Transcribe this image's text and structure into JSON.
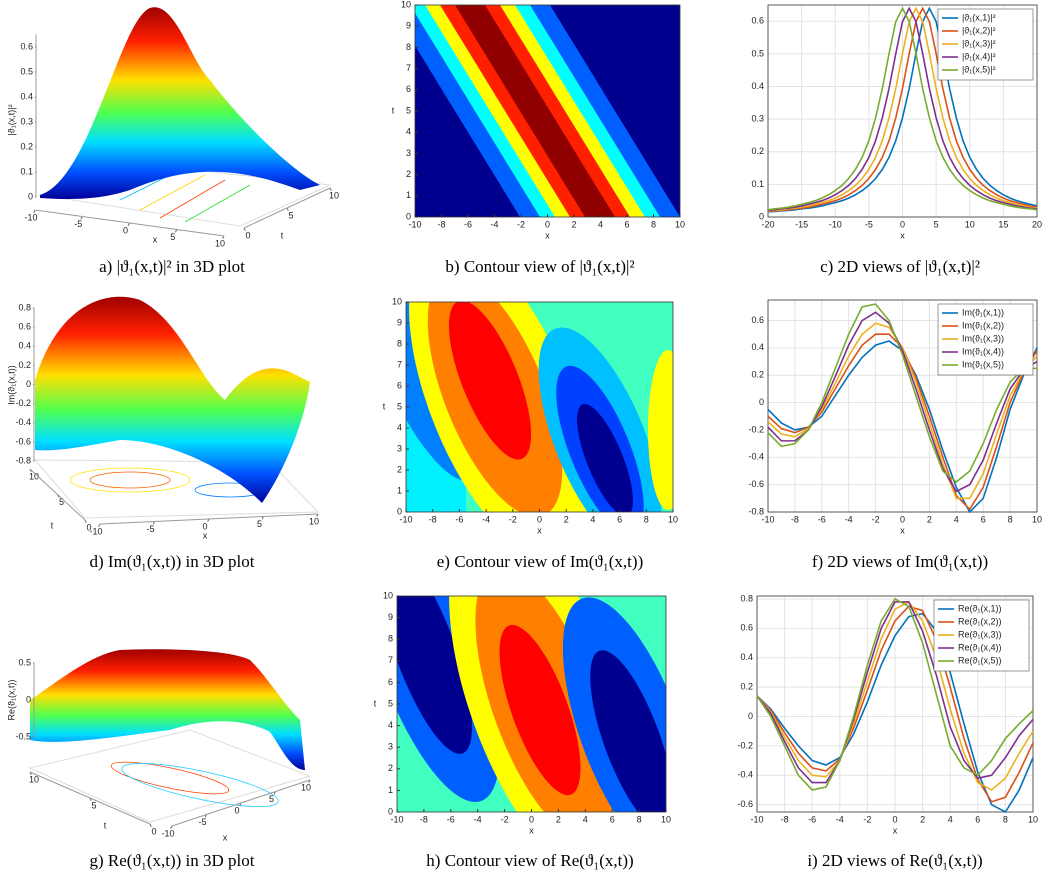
{
  "chart_data": [
    {
      "type": "surface3d",
      "caption": "a) |ϑ₁(x,t)|² in 3D plot",
      "xlabel": "x",
      "ylabel": "t",
      "zlabel": "|ϑ₁(x,t)|²",
      "xlim": [
        -10,
        10
      ],
      "xticks": [
        -10,
        -5,
        0,
        5,
        10
      ],
      "ylim": [
        0,
        10
      ],
      "yticks": [
        0,
        5,
        10
      ],
      "zlim": [
        0,
        0.65
      ],
      "zticks": [
        0,
        0.1,
        0.2,
        0.3,
        0.4,
        0.5,
        0.6
      ]
    },
    {
      "type": "contour",
      "caption": "b) Contour view of |ϑ₁(x,t)|²",
      "xlabel": "x",
      "ylabel": "t",
      "xlim": [
        -10,
        10
      ],
      "xticks": [
        -10,
        -8,
        -6,
        -4,
        -2,
        0,
        2,
        4,
        6,
        8,
        10
      ],
      "ylim": [
        0,
        10
      ],
      "yticks": [
        0,
        1,
        2,
        3,
        4,
        5,
        6,
        7,
        8,
        9,
        10
      ]
    },
    {
      "type": "line",
      "caption": "c) 2D views of |ϑ₁(x,t)|²",
      "xlabel": "x",
      "grid": true,
      "legend": "upper right",
      "xlim": [
        -20,
        20
      ],
      "xticks": [
        -20,
        -15,
        -10,
        -5,
        0,
        5,
        10,
        15,
        20
      ],
      "ylim": [
        0,
        0.65
      ],
      "yticks": [
        0,
        0.1,
        0.2,
        0.3,
        0.4,
        0.5,
        0.6
      ],
      "x": [
        -20,
        -19,
        -18,
        -17,
        -16,
        -15,
        -14,
        -13,
        -12,
        -11,
        -10,
        -9,
        -8,
        -7,
        -6,
        -5,
        -4,
        -3,
        -2,
        -1,
        0,
        1,
        2,
        3,
        4,
        5,
        6,
        7,
        8,
        9,
        10,
        11,
        12,
        13,
        14,
        15,
        16,
        17,
        18,
        19,
        20
      ],
      "series": [
        {
          "name": "|ϑ₁(x,1)|²",
          "color": "#0072bd",
          "values": [
            0.016,
            0.017,
            0.019,
            0.02,
            0.022,
            0.025,
            0.027,
            0.03,
            0.034,
            0.039,
            0.044,
            0.05,
            0.058,
            0.068,
            0.081,
            0.097,
            0.118,
            0.146,
            0.183,
            0.234,
            0.304,
            0.394,
            0.501,
            0.599,
            0.64,
            0.599,
            0.501,
            0.394,
            0.304,
            0.234,
            0.183,
            0.146,
            0.118,
            0.097,
            0.081,
            0.068,
            0.058,
            0.05,
            0.044,
            0.039,
            0.034
          ]
        },
        {
          "name": "|ϑ₁(x,2)|²",
          "color": "#d95319",
          "values": [
            0.017,
            0.019,
            0.02,
            0.022,
            0.025,
            0.027,
            0.03,
            0.034,
            0.039,
            0.044,
            0.05,
            0.058,
            0.068,
            0.081,
            0.097,
            0.118,
            0.146,
            0.183,
            0.234,
            0.304,
            0.394,
            0.501,
            0.599,
            0.64,
            0.599,
            0.501,
            0.394,
            0.304,
            0.234,
            0.183,
            0.146,
            0.118,
            0.097,
            0.081,
            0.068,
            0.058,
            0.05,
            0.044,
            0.039,
            0.034,
            0.03
          ]
        },
        {
          "name": "|ϑ₁(x,3)|²",
          "color": "#edb120",
          "values": [
            0.019,
            0.02,
            0.022,
            0.025,
            0.027,
            0.03,
            0.034,
            0.039,
            0.044,
            0.05,
            0.058,
            0.068,
            0.081,
            0.097,
            0.118,
            0.146,
            0.183,
            0.234,
            0.304,
            0.394,
            0.501,
            0.599,
            0.64,
            0.599,
            0.501,
            0.394,
            0.304,
            0.234,
            0.183,
            0.146,
            0.118,
            0.097,
            0.081,
            0.068,
            0.058,
            0.05,
            0.044,
            0.039,
            0.034,
            0.03,
            0.027
          ]
        },
        {
          "name": "|ϑ₁(x,4)|²",
          "color": "#7e2f8e",
          "values": [
            0.02,
            0.022,
            0.025,
            0.027,
            0.03,
            0.034,
            0.039,
            0.044,
            0.05,
            0.058,
            0.068,
            0.081,
            0.097,
            0.118,
            0.146,
            0.183,
            0.234,
            0.304,
            0.394,
            0.501,
            0.599,
            0.64,
            0.599,
            0.501,
            0.394,
            0.304,
            0.234,
            0.183,
            0.146,
            0.118,
            0.097,
            0.081,
            0.068,
            0.058,
            0.05,
            0.044,
            0.039,
            0.034,
            0.03,
            0.027,
            0.025
          ]
        },
        {
          "name": "|ϑ₁(x,5)|²",
          "color": "#77ac30",
          "values": [
            0.022,
            0.025,
            0.027,
            0.03,
            0.034,
            0.039,
            0.044,
            0.05,
            0.058,
            0.068,
            0.081,
            0.097,
            0.118,
            0.146,
            0.183,
            0.234,
            0.304,
            0.394,
            0.501,
            0.599,
            0.64,
            0.599,
            0.501,
            0.394,
            0.304,
            0.234,
            0.183,
            0.146,
            0.118,
            0.097,
            0.081,
            0.068,
            0.058,
            0.05,
            0.044,
            0.039,
            0.034,
            0.03,
            0.027,
            0.025,
            0.022
          ]
        }
      ]
    },
    {
      "type": "surface3d",
      "caption": "d) Im(ϑ₁(x,t)) in 3D plot",
      "xlabel": "x",
      "ylabel": "t",
      "zlabel": "Im(ϑ₁(x,t))",
      "xlim": [
        -10,
        10
      ],
      "xticks": [
        -10,
        -5,
        0,
        5,
        10
      ],
      "ylim": [
        0,
        10
      ],
      "yticks": [
        0,
        5,
        10
      ],
      "zlim": [
        -0.8,
        0.8
      ],
      "zticks": [
        -0.8,
        -0.6,
        -0.4,
        -0.2,
        0,
        0.2,
        0.4,
        0.6,
        0.8
      ]
    },
    {
      "type": "contour",
      "caption": "e) Contour view of Im(ϑ₁(x,t))",
      "xlabel": "x",
      "ylabel": "t",
      "xlim": [
        -10,
        10
      ],
      "xticks": [
        -10,
        -8,
        -6,
        -4,
        -2,
        0,
        2,
        4,
        6,
        8,
        10
      ],
      "ylim": [
        0,
        10
      ],
      "yticks": [
        0,
        1,
        2,
        3,
        4,
        5,
        6,
        7,
        8,
        9,
        10
      ]
    },
    {
      "type": "line",
      "caption": "f) 2D views of Im(ϑ₁(x,t))",
      "xlabel": "x",
      "grid": true,
      "legend": "upper right",
      "xlim": [
        -10,
        10
      ],
      "xticks": [
        -10,
        -8,
        -6,
        -4,
        -2,
        0,
        2,
        4,
        6,
        8,
        10
      ],
      "ylim": [
        -0.8,
        0.75
      ],
      "yticks": [
        -0.8,
        -0.6,
        -0.4,
        -0.2,
        0,
        0.2,
        0.4,
        0.6
      ],
      "x": [
        -10,
        -9,
        -8,
        -7,
        -6,
        -5,
        -4,
        -3,
        -2,
        -1,
        0,
        1,
        2,
        3,
        4,
        5,
        6,
        7,
        8,
        9,
        10
      ],
      "series": [
        {
          "name": "Im(ϑ₁(x,1))",
          "color": "#0072bd",
          "values": [
            -0.05,
            -0.15,
            -0.2,
            -0.18,
            -0.1,
            0.05,
            0.2,
            0.33,
            0.42,
            0.45,
            0.38,
            0.2,
            -0.05,
            -0.35,
            -0.62,
            -0.8,
            -0.7,
            -0.4,
            -0.05,
            0.2,
            0.4
          ]
        },
        {
          "name": "Im(ϑ₁(x,2))",
          "color": "#d95319",
          "values": [
            -0.1,
            -0.19,
            -0.22,
            -0.18,
            -0.07,
            0.1,
            0.27,
            0.42,
            0.5,
            0.5,
            0.4,
            0.18,
            -0.1,
            -0.4,
            -0.68,
            -0.78,
            -0.62,
            -0.32,
            0.0,
            0.22,
            0.38
          ]
        },
        {
          "name": "Im(ϑ₁(x,3))",
          "color": "#edb120",
          "values": [
            -0.14,
            -0.23,
            -0.25,
            -0.19,
            -0.05,
            0.14,
            0.34,
            0.5,
            0.58,
            0.55,
            0.4,
            0.15,
            -0.15,
            -0.45,
            -0.7,
            -0.7,
            -0.52,
            -0.23,
            0.05,
            0.23,
            0.34
          ]
        },
        {
          "name": "Im(ϑ₁(x,4))",
          "color": "#7e2f8e",
          "values": [
            -0.18,
            -0.28,
            -0.28,
            -0.2,
            -0.03,
            0.19,
            0.42,
            0.6,
            0.66,
            0.58,
            0.38,
            0.1,
            -0.2,
            -0.48,
            -0.65,
            -0.6,
            -0.42,
            -0.15,
            0.1,
            0.24,
            0.3
          ]
        },
        {
          "name": "Im(ϑ₁(x,5))",
          "color": "#77ac30",
          "values": [
            -0.22,
            -0.32,
            -0.3,
            -0.2,
            0.0,
            0.25,
            0.5,
            0.7,
            0.72,
            0.6,
            0.35,
            0.05,
            -0.25,
            -0.5,
            -0.58,
            -0.5,
            -0.3,
            -0.05,
            0.15,
            0.25,
            0.25
          ]
        }
      ]
    },
    {
      "type": "surface3d",
      "caption": "g) Re(ϑ₁(x,t)) in 3D plot",
      "xlabel": "x",
      "ylabel": "t",
      "zlabel": "Re(ϑ₁(x,t))",
      "xlim": [
        -10,
        10
      ],
      "xticks": [
        -10,
        -5,
        0,
        5,
        10
      ],
      "ylim": [
        0,
        10
      ],
      "yticks": [
        0,
        5,
        10
      ],
      "zlim": [
        -0.5,
        0.5
      ],
      "zticks": [
        -0.5,
        0,
        0.5
      ]
    },
    {
      "type": "contour",
      "caption": "h) Contour view of Re(ϑ₁(x,t))",
      "xlabel": "x",
      "ylabel": "t",
      "xlim": [
        -10,
        10
      ],
      "xticks": [
        -10,
        -8,
        -6,
        -4,
        -2,
        0,
        2,
        4,
        6,
        8,
        10
      ],
      "ylim": [
        0,
        10
      ],
      "yticks": [
        0,
        1,
        2,
        3,
        4,
        5,
        6,
        7,
        8,
        9,
        10
      ]
    },
    {
      "type": "line",
      "caption": "i) 2D views of Re(ϑ₁(x,t))",
      "xlabel": "x",
      "grid": true,
      "legend": "upper right",
      "xlim": [
        -10,
        10
      ],
      "xticks": [
        -10,
        -8,
        -6,
        -4,
        -2,
        0,
        2,
        4,
        6,
        8,
        10
      ],
      "ylim": [
        -0.65,
        0.82
      ],
      "yticks": [
        -0.6,
        -0.4,
        -0.2,
        0,
        0.2,
        0.4,
        0.6,
        0.8
      ],
      "x": [
        -10,
        -9,
        -8,
        -7,
        -6,
        -5,
        -4,
        -3,
        -2,
        -1,
        0,
        1,
        2,
        3,
        4,
        5,
        6,
        7,
        8,
        9,
        10
      ],
      "series": [
        {
          "name": "Re(ϑ₁(x,1))",
          "color": "#0072bd",
          "values": [
            0.14,
            0.05,
            -0.08,
            -0.2,
            -0.3,
            -0.33,
            -0.28,
            -0.12,
            0.1,
            0.35,
            0.55,
            0.68,
            0.7,
            0.58,
            0.3,
            -0.05,
            -0.38,
            -0.6,
            -0.65,
            -0.5,
            -0.28
          ]
        },
        {
          "name": "Re(ϑ₁(x,2))",
          "color": "#d95319",
          "values": [
            0.14,
            0.04,
            -0.11,
            -0.25,
            -0.35,
            -0.37,
            -0.29,
            -0.08,
            0.18,
            0.45,
            0.65,
            0.75,
            0.72,
            0.52,
            0.2,
            -0.15,
            -0.43,
            -0.58,
            -0.55,
            -0.38,
            -0.18
          ]
        },
        {
          "name": "Re(ϑ₁(x,3))",
          "color": "#edb120",
          "values": [
            0.14,
            0.03,
            -0.14,
            -0.3,
            -0.4,
            -0.41,
            -0.3,
            -0.05,
            0.24,
            0.53,
            0.73,
            0.78,
            0.65,
            0.4,
            0.05,
            -0.25,
            -0.45,
            -0.5,
            -0.42,
            -0.25,
            -0.1
          ]
        },
        {
          "name": "Re(ϑ₁(x,4))",
          "color": "#7e2f8e",
          "values": [
            0.14,
            0.02,
            -0.17,
            -0.35,
            -0.45,
            -0.45,
            -0.3,
            -0.02,
            0.3,
            0.6,
            0.78,
            0.78,
            0.58,
            0.28,
            -0.07,
            -0.3,
            -0.42,
            -0.4,
            -0.28,
            -0.13,
            -0.02
          ]
        },
        {
          "name": "Re(ϑ₁(x,5))",
          "color": "#77ac30",
          "values": [
            0.14,
            0.0,
            -0.2,
            -0.4,
            -0.5,
            -0.48,
            -0.3,
            0.0,
            0.35,
            0.65,
            0.8,
            0.75,
            0.5,
            0.15,
            -0.2,
            -0.35,
            -0.4,
            -0.3,
            -0.15,
            -0.05,
            0.04
          ]
        }
      ]
    }
  ]
}
